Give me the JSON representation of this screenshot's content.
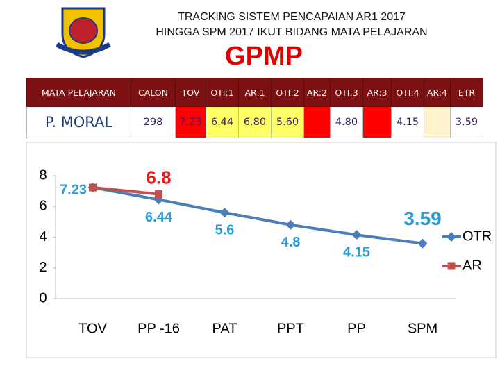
{
  "header": {
    "title_lines": [
      "TRACKING SISTEM PENCAPAIAN AR1 2017",
      "HINGGA SPM 2017 IKUT BIDANG MATA PELAJARAN"
    ],
    "subject_code": "GPMP"
  },
  "table": {
    "headers": [
      "MATA PELAJARAN",
      "CALON",
      "TOV",
      "OTI:1",
      "AR:1",
      "OTI:2",
      "AR:2",
      "OTI:3",
      "AR:3",
      "OTI:4",
      "AR:4",
      "ETR"
    ],
    "rows": [
      [
        "P. MORAL",
        "298",
        "7.23",
        "6.44",
        "6.80",
        "5.60",
        null,
        "4.80",
        null,
        "4.15",
        null,
        "3.59"
      ]
    ]
  },
  "chart_data": {
    "type": "line",
    "categories": [
      "TOV",
      "PP -16",
      "PAT",
      "PPT",
      "PP",
      "SPM"
    ],
    "series": [
      {
        "name": "OTR",
        "color": "#4a7ebb",
        "marker": "diamond",
        "label_color": "#2a9ad8",
        "values": [
          7.23,
          6.44,
          5.6,
          4.8,
          4.15,
          3.59
        ]
      },
      {
        "name": "AR",
        "color": "#c0504d",
        "marker": "square",
        "label_color": "#e02020",
        "values": [
          7.23,
          6.8,
          null,
          null,
          null,
          null
        ],
        "value_labels": [
          null,
          "6.8",
          null,
          null,
          null,
          null
        ]
      }
    ],
    "ylim": [
      0,
      8
    ],
    "yticks": [
      0,
      2,
      4,
      6,
      8
    ],
    "grid": false,
    "legend": "right"
  }
}
